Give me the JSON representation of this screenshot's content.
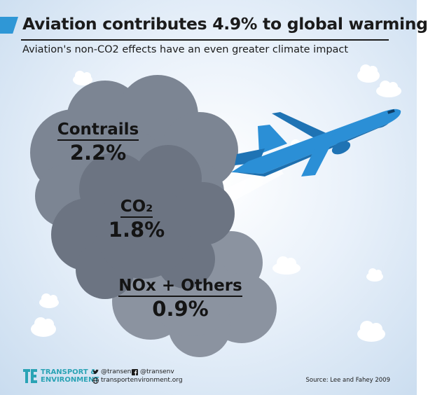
{
  "header": {
    "title": "Aviation contributes 4.9% to global warming",
    "subtitle": "Aviation's non-CO2 effects have an even greater climate impact"
  },
  "chart_data": {
    "type": "bubble",
    "categories": [
      "Contrails",
      "CO₂",
      "NOx + Others"
    ],
    "values": [
      2.2,
      1.8,
      0.9
    ],
    "value_labels": [
      "2.2%",
      "1.8%",
      "0.9%"
    ],
    "total_label": "4.9%"
  },
  "footer": {
    "brand_line1": "TRANSPORT &",
    "brand_line2": "ENVIRONMENT",
    "twitter": "@transenv",
    "facebook": "@transenv",
    "website": "transportenvironment.org",
    "source": "Source: Lee and Fahey 2009"
  },
  "colors": {
    "accent": "#2f97d6",
    "cloud_contrails": "#7c8593",
    "cloud_co2": "#6c7482",
    "cloud_nox": "#8b93a0",
    "plane": "#2b8fd6",
    "brand": "#2aa3b5"
  },
  "icons": [
    "twitter-icon",
    "facebook-icon",
    "globe-icon",
    "te-logo-icon",
    "airplane-icon"
  ]
}
